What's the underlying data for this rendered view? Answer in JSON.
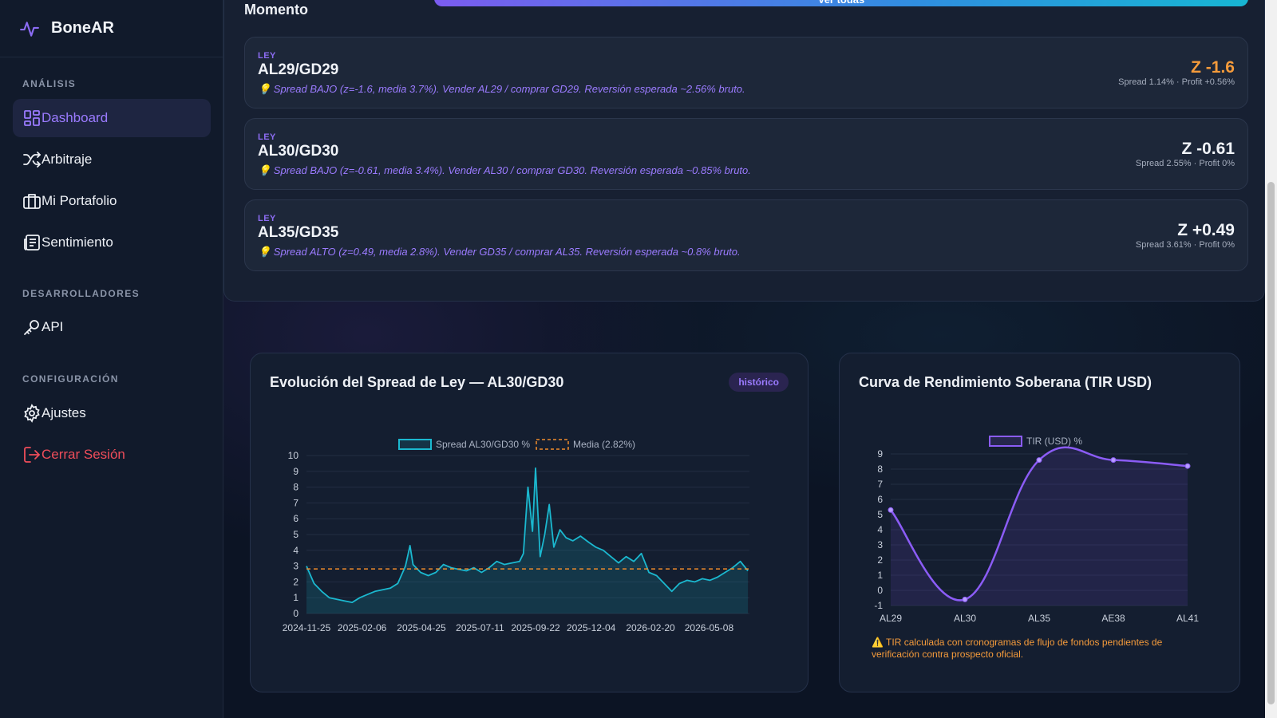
{
  "app": {
    "name": "BoneAR"
  },
  "sidebar": {
    "sections": {
      "analisis": "ANÁLISIS",
      "desarrolladores": "DESARROLLADORES",
      "configuracion": "CONFIGURACIÓN"
    },
    "items": {
      "dashboard": "Dashboard",
      "arbitraje": "Arbitraje",
      "portafolio": "Mi Portafolio",
      "sentimiento": "Sentimiento",
      "api": "API",
      "ajustes": "Ajustes",
      "logout": "Cerrar Sesión"
    },
    "active": "dashboard",
    "accent": "#9b7bff",
    "logout_color": "#ef4d5a"
  },
  "opportunities": {
    "title": "Momento",
    "view_all": "Ver todas",
    "cards": [
      {
        "tag": "LEY",
        "pair": "AL29/GD29",
        "description": "💡 Spread BAJO (z=-1.6, media 3.7%). Vender AL29 / comprar GD29. Reversión esperada ~2.56% bruto.",
        "z": "Z -1.6",
        "sub": "Spread 1.14% · Profit +0.56%",
        "highlight": true
      },
      {
        "tag": "LEY",
        "pair": "AL30/GD30",
        "description": "💡 Spread BAJO (z=-0.61, media 3.4%). Vender AL30 / comprar GD30. Reversión esperada ~0.85% bruto.",
        "z": "Z -0.61",
        "sub": "Spread 2.55% · Profit 0%",
        "highlight": false
      },
      {
        "tag": "LEY",
        "pair": "AL35/GD35",
        "description": "💡 Spread ALTO (z=0.49, media 2.8%). Vender GD35 / comprar AL35. Reversión esperada ~0.8% bruto.",
        "z": "Z +0.49",
        "sub": "Spread 3.61% · Profit 0%",
        "highlight": false
      }
    ]
  },
  "spread_card": {
    "title": "Evolución del Spread de Ley — AL30/GD30",
    "badge": "histórico"
  },
  "yield_card": {
    "title": "Curva de Rendimiento Soberana (TIR USD)",
    "note": "⚠️ TIR calculada con cronogramas de flujo de fondos pendientes de verificación contra prospecto oficial."
  },
  "chart_data": [
    {
      "type": "line",
      "title": "",
      "legend": [
        "Spread AL30/GD30 %",
        "Media (2.82%)"
      ],
      "legend_position": "top",
      "x_ticks": [
        "2024-11-25",
        "2025-02-06",
        "2025-04-25",
        "2025-07-11",
        "2025-09-22",
        "2025-12-04",
        "2026-02-20",
        "2026-05-08"
      ],
      "x_range": [
        "2024-11-25",
        "2026-06-30"
      ],
      "ylim": [
        0,
        10
      ],
      "y_ticks": [
        0,
        1,
        2,
        3,
        4,
        5,
        6,
        7,
        8,
        9,
        10
      ],
      "grid": true,
      "series": [
        {
          "name": "Spread AL30/GD30 %",
          "color": "#1bb8cf",
          "fill": true,
          "points": [
            [
              "2024-11-25",
              3.0
            ],
            [
              "2024-12-05",
              1.9
            ],
            [
              "2024-12-15",
              1.4
            ],
            [
              "2024-12-25",
              1.0
            ],
            [
              "2025-01-04",
              0.9
            ],
            [
              "2025-01-14",
              0.8
            ],
            [
              "2025-01-24",
              0.7
            ],
            [
              "2025-02-03",
              1.0
            ],
            [
              "2025-02-13",
              1.2
            ],
            [
              "2025-02-23",
              1.4
            ],
            [
              "2025-03-05",
              1.5
            ],
            [
              "2025-03-15",
              1.6
            ],
            [
              "2025-03-25",
              1.9
            ],
            [
              "2025-04-04",
              3.0
            ],
            [
              "2025-04-10",
              4.3
            ],
            [
              "2025-04-14",
              3.1
            ],
            [
              "2025-04-24",
              2.6
            ],
            [
              "2025-05-04",
              2.4
            ],
            [
              "2025-05-14",
              2.6
            ],
            [
              "2025-05-24",
              3.1
            ],
            [
              "2025-06-03",
              2.9
            ],
            [
              "2025-06-13",
              2.8
            ],
            [
              "2025-06-23",
              2.7
            ],
            [
              "2025-07-03",
              2.9
            ],
            [
              "2025-07-13",
              2.6
            ],
            [
              "2025-07-23",
              2.9
            ],
            [
              "2025-08-02",
              3.3
            ],
            [
              "2025-08-12",
              3.1
            ],
            [
              "2025-08-22",
              3.2
            ],
            [
              "2025-09-01",
              3.3
            ],
            [
              "2025-09-06",
              3.8
            ],
            [
              "2025-09-12",
              8.0
            ],
            [
              "2025-09-18",
              5.2
            ],
            [
              "2025-09-22",
              9.2
            ],
            [
              "2025-09-28",
              3.6
            ],
            [
              "2025-10-04",
              5.0
            ],
            [
              "2025-10-10",
              6.9
            ],
            [
              "2025-10-16",
              4.2
            ],
            [
              "2025-10-24",
              5.3
            ],
            [
              "2025-11-01",
              4.8
            ],
            [
              "2025-11-10",
              4.6
            ],
            [
              "2025-11-20",
              4.9
            ],
            [
              "2025-12-01",
              4.5
            ],
            [
              "2025-12-10",
              4.2
            ],
            [
              "2025-12-20",
              4.0
            ],
            [
              "2025-12-30",
              3.6
            ],
            [
              "2026-01-09",
              3.2
            ],
            [
              "2026-01-19",
              3.6
            ],
            [
              "2026-01-29",
              3.3
            ],
            [
              "2026-02-08",
              3.8
            ],
            [
              "2026-02-18",
              2.6
            ],
            [
              "2026-02-28",
              2.4
            ],
            [
              "2026-03-10",
              1.9
            ],
            [
              "2026-03-20",
              1.4
            ],
            [
              "2026-03-30",
              1.9
            ],
            [
              "2026-04-09",
              2.1
            ],
            [
              "2026-04-19",
              2.0
            ],
            [
              "2026-04-29",
              2.2
            ],
            [
              "2026-05-09",
              2.1
            ],
            [
              "2026-05-19",
              2.3
            ],
            [
              "2026-05-29",
              2.6
            ],
            [
              "2026-06-08",
              2.9
            ],
            [
              "2026-06-18",
              3.3
            ],
            [
              "2026-06-28",
              2.7
            ]
          ]
        },
        {
          "name": "Media (2.82%)",
          "color": "#f08c2b",
          "dashed": true,
          "constant": 2.82
        }
      ]
    },
    {
      "type": "line",
      "title": "",
      "legend": [
        "TIR (USD) %"
      ],
      "legend_position": "top",
      "categories": [
        "AL29",
        "AL30",
        "AL35",
        "AE38",
        "AL41"
      ],
      "ylim": [
        -1,
        9
      ],
      "y_ticks": [
        -1,
        0,
        1,
        2,
        3,
        4,
        5,
        6,
        7,
        8,
        9
      ],
      "grid": true,
      "series": [
        {
          "name": "TIR (USD) %",
          "color": "#8b5cf6",
          "fill": true,
          "values": [
            5.3,
            -0.6,
            8.6,
            8.6,
            8.2
          ]
        }
      ]
    }
  ]
}
